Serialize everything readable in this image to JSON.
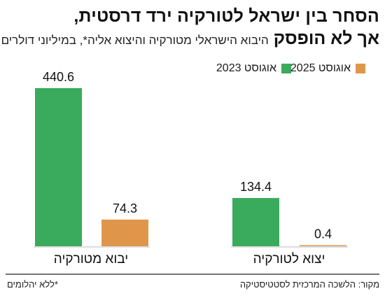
{
  "title_line1": "הסחר בין ישראל לטורקיה ירד דרסטית,",
  "title_line2": "אך לא הופסק",
  "subtitle": "היבוא הישראלי מטורקיה והיצוא אליה*, במיליוני דולרים",
  "legend": [
    {
      "label": "אוגוסט 2023",
      "color": "#3aaa5c"
    },
    {
      "label": "אוגוסט 2025",
      "color": "#e0964a"
    }
  ],
  "footnote": "*ללא יהלומים",
  "source": "מקור: הלשכה המרכזית לסטטיסטיקה",
  "chart_data": {
    "type": "bar",
    "categories": [
      "יבוא מטורקיה",
      "יצוא לטורקיה"
    ],
    "series": [
      {
        "name": "אוגוסט 2023",
        "color": "#3aaa5c",
        "values": [
          440.6,
          134.4
        ]
      },
      {
        "name": "אוגוסט 2025",
        "color": "#e0964a",
        "values": [
          74.3,
          0.4
        ]
      }
    ],
    "ylim": [
      0,
      440.6
    ],
    "grid": false,
    "legend_position": "top-right"
  }
}
